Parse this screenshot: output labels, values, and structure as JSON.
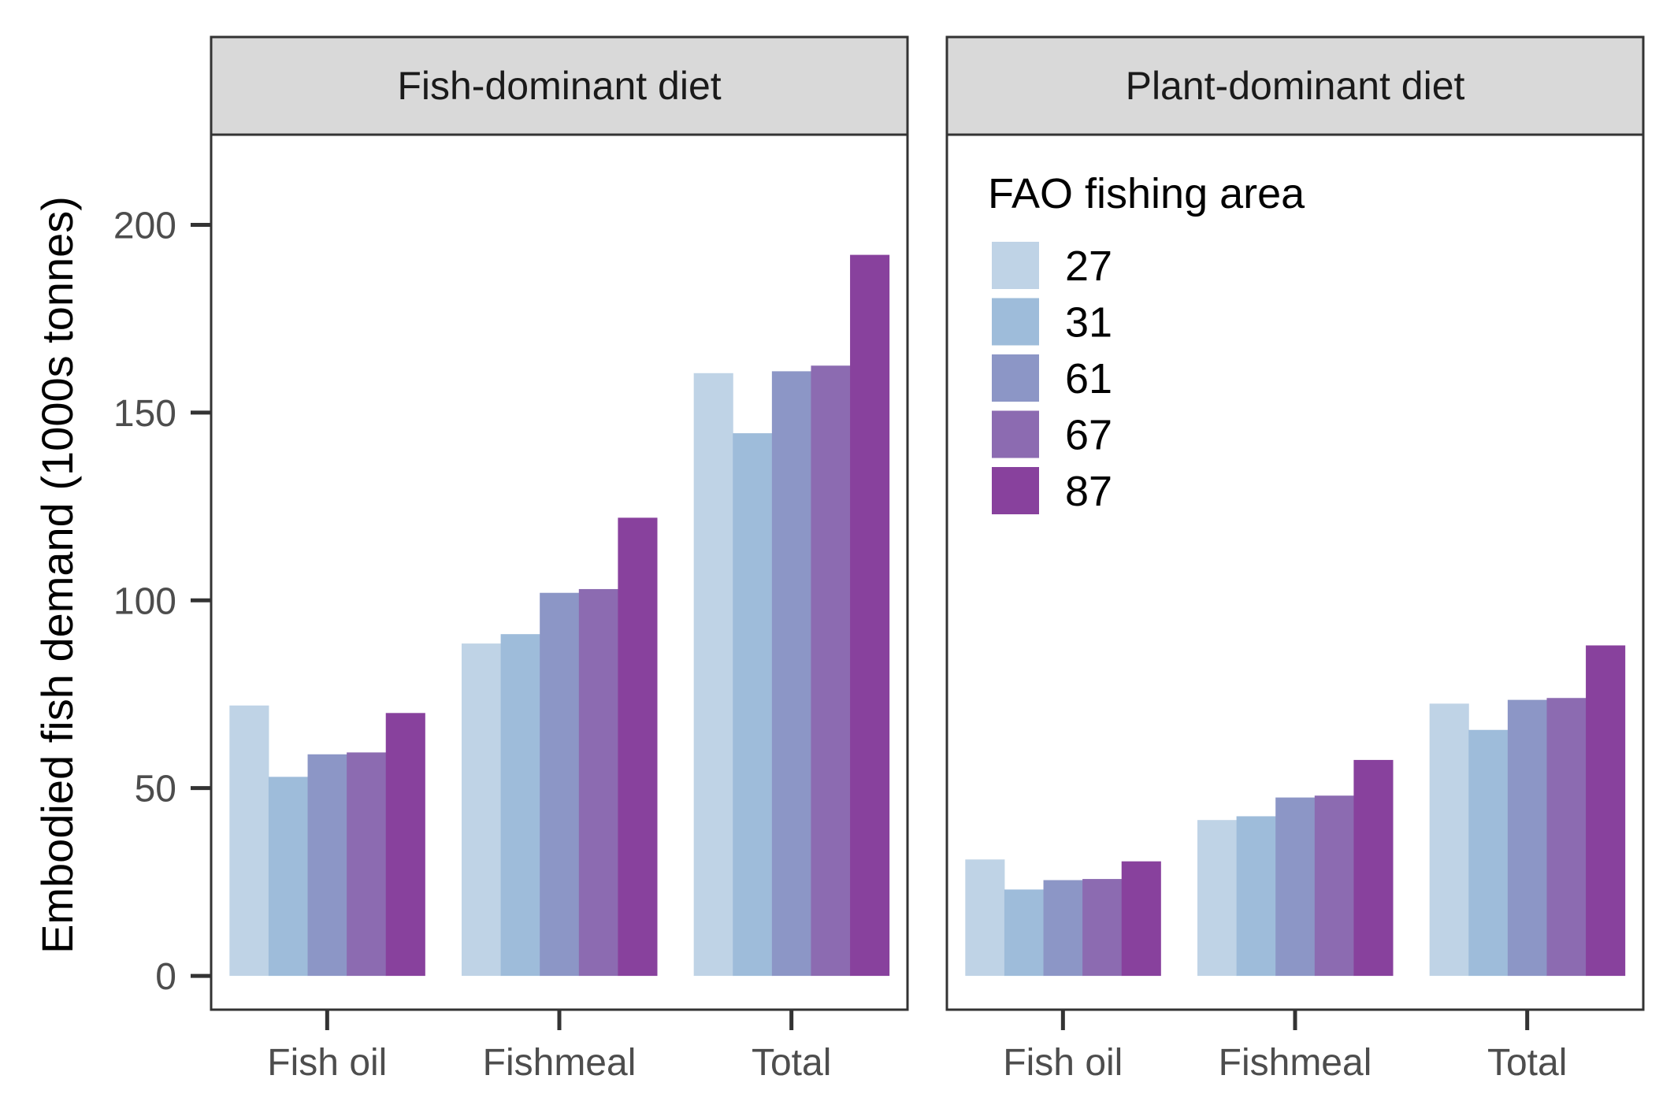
{
  "chart_data": {
    "type": "bar",
    "ylabel": "Embodied fish demand (1000s tonnes)",
    "ylim": [
      -9,
      224
    ],
    "yticks": [
      0,
      50,
      100,
      150,
      200
    ],
    "categories": [
      "Fish oil",
      "Fishmeal",
      "Total"
    ],
    "legend": {
      "title": "FAO fishing area",
      "placement": "top-left inside right panel",
      "entries": [
        "27",
        "31",
        "61",
        "67",
        "87"
      ]
    },
    "colors": [
      "#bfd3e6",
      "#9ebcda",
      "#8c96c6",
      "#8c6bb1",
      "#88419d"
    ],
    "grid": false,
    "panels": [
      {
        "title": "Fish-dominant diet",
        "series": [
          {
            "name": "27",
            "values": [
              72,
              88.5,
              160.5
            ]
          },
          {
            "name": "31",
            "values": [
              53,
              91,
              144.5
            ]
          },
          {
            "name": "61",
            "values": [
              59,
              102,
              161
            ]
          },
          {
            "name": "67",
            "values": [
              59.5,
              103,
              162.5
            ]
          },
          {
            "name": "87",
            "values": [
              70,
              122,
              192
            ]
          }
        ]
      },
      {
        "title": "Plant-dominant diet",
        "series": [
          {
            "name": "27",
            "values": [
              31,
              41.5,
              72.5
            ]
          },
          {
            "name": "31",
            "values": [
              23,
              42.5,
              65.5
            ]
          },
          {
            "name": "61",
            "values": [
              25.5,
              47.5,
              73.5
            ]
          },
          {
            "name": "67",
            "values": [
              25.8,
              48,
              74
            ]
          },
          {
            "name": "87",
            "values": [
              30.5,
              57.5,
              88
            ]
          }
        ]
      }
    ]
  }
}
